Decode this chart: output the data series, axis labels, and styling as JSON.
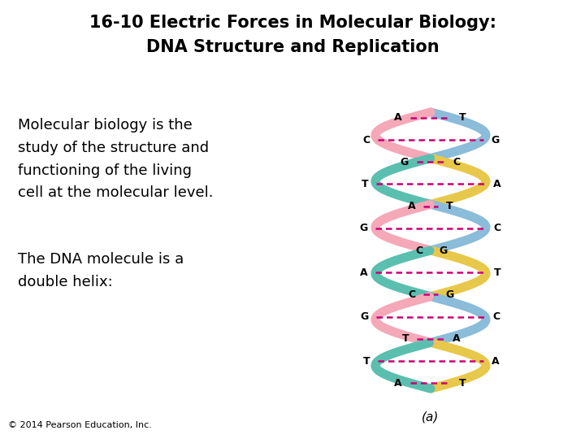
{
  "title_line1": "16-10 Electric Forces in Molecular Biology:",
  "title_line2": "DNA Structure and Replication",
  "body_text1": "Molecular biology is the\nstudy of the structure and\nfunctioning of the living\ncell at the molecular level.",
  "body_text2": "The DNA molecule is a\ndouble helix:",
  "caption": "(a)",
  "footer": "© 2014 Pearson Education, Inc.",
  "bg_color": "#ffffff",
  "title_color": "#000000",
  "body_color": "#000000",
  "footer_color": "#000000",
  "title_fontsize": 15,
  "body_fontsize": 13,
  "footer_fontsize": 8,
  "caption_fontsize": 11,
  "strand_color_blue": "#8BBCDA",
  "strand_color_pink": "#F4A8B8",
  "strand_color_teal": "#5BBFB0",
  "strand_color_yellow": "#E8C84A",
  "rung_color": "#CC0077",
  "left_bases": [
    "A",
    "C",
    "G",
    "T",
    "A",
    "G",
    "C",
    "A",
    "C",
    "G",
    "T",
    "T",
    "A"
  ],
  "right_bases": [
    "T",
    "G",
    "C",
    "A",
    "T",
    "C",
    "G",
    "T",
    "G",
    "C",
    "A",
    "A",
    "T"
  ]
}
